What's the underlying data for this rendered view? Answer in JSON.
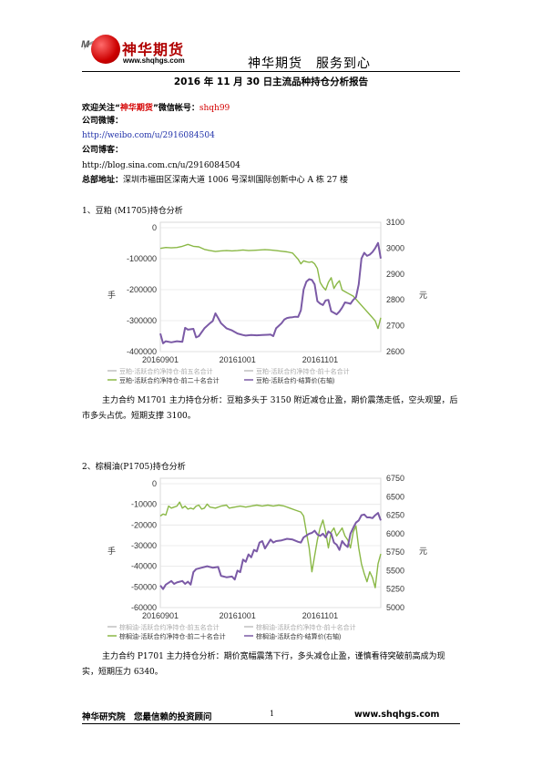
{
  "header": {
    "logo_mark": "M",
    "logo_cn": "神华期货",
    "logo_url": "www.shqhgs.com",
    "slogan": "神华期货　服务到心"
  },
  "title": "2016 年 11 月 30 日主流品种持仓分析报告",
  "contact": {
    "follow_prefix": "欢迎关注“",
    "follow_name": "神华期货",
    "follow_suffix": "”微信帐号：",
    "wechat_id": "shqh99",
    "weibo_label": "公司微博：",
    "weibo_url": "http://weibo.com/u/2916084504",
    "blog_label": "公司博客：",
    "blog_url": "http://blog.sina.com.cn/u/2916084504",
    "address_label": "总部地址：",
    "address": "深圳市福田区深南大道 1006 号深圳国际创新中心 A 栋 27 楼"
  },
  "sections": [
    {
      "heading": "1、豆粕 (M1705)持仓分析",
      "analysis": "主力合约 M1701 主力持仓分析：豆粕多头于 3150 附近减仓止盈，期价震荡走低，空头观望，后市多头占优。短期支撑 3100。"
    },
    {
      "heading": "2、棕榈油(P1705)持仓分析",
      "analysis": "主力合约 P1701 主力持仓分析：期价宽幅震荡下行，多头减仓止盈，谨慎看待突破前高成为现实，短期压力 6340。"
    }
  ],
  "chart_data": [
    {
      "type": "line",
      "left_axis": {
        "label": "手",
        "ticks": [
          "0",
          "-100000",
          "-200000",
          "-300000",
          "-400000"
        ],
        "range": [
          -400000,
          20000
        ]
      },
      "right_axis": {
        "label": "元",
        "ticks": [
          "3100",
          "3000",
          "2900",
          "2800",
          "2700",
          "2600"
        ],
        "range": [
          2600,
          3100
        ]
      },
      "x_ticks": [
        "20160901",
        "20161001",
        "20161101"
      ],
      "legend": [
        "豆粕-活跃合约净持仓-前五名合计",
        "豆粕-活跃合约净持仓-前十名合计",
        "豆粕-活跃合约净持仓-前二十名合计",
        "豆粕-活跃合约-结算价(右轴)"
      ],
      "series": [
        {
          "name": "豆粕-活跃合约净持仓-前二十名合计",
          "axis": "left",
          "color": "#8ab846",
          "points": [
            [
              0,
              -65000
            ],
            [
              2,
              -62000
            ],
            [
              4,
              -63000
            ],
            [
              6,
              -62000
            ],
            [
              8,
              -58000
            ],
            [
              10,
              -52000
            ],
            [
              12,
              -58000
            ],
            [
              14,
              -60000
            ],
            [
              16,
              -68000
            ],
            [
              18,
              -72000
            ],
            [
              20,
              -75000
            ],
            [
              22,
              -73000
            ],
            [
              24,
              -72000
            ],
            [
              26,
              -73000
            ],
            [
              28,
              -72000
            ],
            [
              30,
              -70000
            ],
            [
              32,
              -72000
            ],
            [
              34,
              -71000
            ],
            [
              36,
              -70000
            ],
            [
              38,
              -69000
            ],
            [
              40,
              -70000
            ],
            [
              42,
              -72000
            ],
            [
              44,
              -74000
            ],
            [
              46,
              -76000
            ],
            [
              48,
              -80000
            ],
            [
              50,
              -100000
            ],
            [
              51,
              -115000
            ],
            [
              52,
              -105000
            ],
            [
              53,
              -108000
            ],
            [
              54,
              -110000
            ],
            [
              55,
              -108000
            ],
            [
              56,
              -115000
            ],
            [
              57,
              -130000
            ],
            [
              58,
              -175000
            ],
            [
              59,
              -190000
            ],
            [
              60,
              -200000
            ],
            [
              61,
              -175000
            ],
            [
              62,
              -160000
            ],
            [
              63,
              -195000
            ],
            [
              64,
              -180000
            ],
            [
              65,
              -170000
            ],
            [
              66,
              -200000
            ],
            [
              67,
              -205000
            ],
            [
              68,
              -210000
            ],
            [
              70,
              -220000
            ],
            [
              72,
              -240000
            ],
            [
              74,
              -260000
            ],
            [
              76,
              -280000
            ],
            [
              78,
              -300000
            ],
            [
              79,
              -325000
            ],
            [
              80,
              -290000
            ]
          ]
        },
        {
          "name": "豆粕-活跃合约-结算价(右轴)",
          "axis": "right",
          "color": "#7b5aa6",
          "points": [
            [
              0,
              2670
            ],
            [
              1,
              2632
            ],
            [
              2,
              2640
            ],
            [
              4,
              2636
            ],
            [
              6,
              2640
            ],
            [
              8,
              2638
            ],
            [
              9,
              2692
            ],
            [
              10,
              2685
            ],
            [
              12,
              2688
            ],
            [
              13,
              2655
            ],
            [
              14,
              2660
            ],
            [
              16,
              2690
            ],
            [
              18,
              2710
            ],
            [
              19,
              2718
            ],
            [
              20,
              2748
            ],
            [
              21,
              2730
            ],
            [
              22,
              2710
            ],
            [
              24,
              2690
            ],
            [
              26,
              2682
            ],
            [
              28,
              2670
            ],
            [
              30,
              2664
            ],
            [
              31,
              2662
            ],
            [
              33,
              2664
            ],
            [
              35,
              2663
            ],
            [
              37,
              2664
            ],
            [
              39,
              2665
            ],
            [
              40,
              2666
            ],
            [
              41,
              2660
            ],
            [
              42,
              2690
            ],
            [
              43,
              2700
            ],
            [
              44,
              2710
            ],
            [
              45,
              2724
            ],
            [
              46,
              2730
            ],
            [
              47,
              2732
            ],
            [
              48,
              2733
            ],
            [
              49,
              2735
            ],
            [
              50,
              2734
            ],
            [
              51,
              2760
            ],
            [
              52,
              2840
            ],
            [
              53,
              2870
            ],
            [
              54,
              2880
            ],
            [
              55,
              2877
            ],
            [
              56,
              2860
            ],
            [
              57,
              2795
            ],
            [
              58,
              2786
            ],
            [
              59,
              2780
            ],
            [
              60,
              2798
            ],
            [
              61,
              2800
            ],
            [
              62,
              2756
            ],
            [
              63,
              2750
            ],
            [
              64,
              2744
            ],
            [
              65,
              2755
            ],
            [
              66,
              2770
            ],
            [
              67,
              2790
            ],
            [
              68,
              2788
            ],
            [
              69,
              2785
            ],
            [
              70,
              2800
            ],
            [
              71,
              2810
            ],
            [
              72,
              2860
            ],
            [
              73,
              2960
            ],
            [
              74,
              2982
            ],
            [
              75,
              2970
            ],
            [
              76,
              2975
            ],
            [
              77,
              2985
            ],
            [
              78,
              3000
            ],
            [
              79,
              3020
            ],
            [
              80,
              2960
            ]
          ]
        }
      ]
    },
    {
      "type": "line",
      "left_axis": {
        "label": "手",
        "ticks": [
          "0",
          "-10000",
          "-20000",
          "-30000",
          "-40000",
          "-50000",
          "-60000"
        ],
        "range": [
          -60000,
          5000
        ]
      },
      "right_axis": {
        "label": "元",
        "ticks": [
          "6750",
          "6500",
          "6250",
          "6000",
          "5750",
          "5500",
          "5250",
          "5000"
        ],
        "range": [
          5000,
          6750
        ]
      },
      "x_ticks": [
        "20160901",
        "20161001",
        "20161101"
      ],
      "legend": [
        "棕榈油-活跃合约净持仓-前五名合计",
        "棕榈油-活跃合约净持仓-前十名合计",
        "棕榈油-活跃合约净持仓-前二十名合计",
        "棕榈油-活跃合约-结算价(右轴)"
      ],
      "series": [
        {
          "name": "棕榈油-活跃合约净持仓-前二十名合计",
          "axis": "left",
          "color": "#8ab846",
          "points": [
            [
              0,
              -14000
            ],
            [
              1,
              -13000
            ],
            [
              2,
              -13500
            ],
            [
              3,
              -9000
            ],
            [
              4,
              -10000
            ],
            [
              5,
              -9500
            ],
            [
              6,
              -9000
            ],
            [
              7,
              -7000
            ],
            [
              8,
              -10000
            ],
            [
              9,
              -9000
            ],
            [
              10,
              -10500
            ],
            [
              11,
              -10000
            ],
            [
              12,
              -10500
            ],
            [
              13,
              -9000
            ],
            [
              14,
              -8500
            ],
            [
              15,
              -10500
            ],
            [
              16,
              -10000
            ],
            [
              17,
              -8000
            ],
            [
              18,
              -9500
            ],
            [
              20,
              -10000
            ],
            [
              22,
              -9000
            ],
            [
              24,
              -8500
            ],
            [
              25,
              -10000
            ],
            [
              27,
              -9500
            ],
            [
              29,
              -9000
            ],
            [
              31,
              -9500
            ],
            [
              33,
              -9000
            ],
            [
              35,
              -8500
            ],
            [
              37,
              -9000
            ],
            [
              39,
              -8500
            ],
            [
              41,
              -9000
            ],
            [
              43,
              -8500
            ],
            [
              45,
              -9000
            ],
            [
              47,
              -10000
            ],
            [
              49,
              -11000
            ],
            [
              51,
              -12000
            ],
            [
              52,
              -14000
            ],
            [
              53,
              -22000
            ],
            [
              54,
              -30000
            ],
            [
              55,
              -42000
            ],
            [
              56,
              -34000
            ],
            [
              57,
              -26000
            ],
            [
              58,
              -20000
            ],
            [
              59,
              -16000
            ],
            [
              60,
              -22000
            ],
            [
              61,
              -30000
            ],
            [
              62,
              -22000
            ],
            [
              63,
              -20000
            ],
            [
              64,
              -24000
            ],
            [
              65,
              -22000
            ],
            [
              66,
              -20000
            ],
            [
              67,
              -24000
            ],
            [
              68,
              -26000
            ],
            [
              69,
              -30000
            ],
            [
              70,
              -22000
            ],
            [
              71,
              -19000
            ],
            [
              72,
              -30000
            ],
            [
              73,
              -38000
            ],
            [
              74,
              -43000
            ],
            [
              75,
              -47000
            ],
            [
              76,
              -42000
            ],
            [
              77,
              -45000
            ],
            [
              78,
              -50000
            ],
            [
              79,
              -38000
            ],
            [
              80,
              -33000
            ]
          ]
        },
        {
          "name": "棕榈油-活跃合约-结算价(右轴)",
          "axis": "right",
          "color": "#7b5aa6",
          "points": [
            [
              0,
              5300
            ],
            [
              1,
              5250
            ],
            [
              2,
              5310
            ],
            [
              4,
              5360
            ],
            [
              5,
              5320
            ],
            [
              6,
              5340
            ],
            [
              8,
              5360
            ],
            [
              9,
              5320
            ],
            [
              10,
              5350
            ],
            [
              11,
              5310
            ],
            [
              12,
              5480
            ],
            [
              13,
              5520
            ],
            [
              15,
              5540
            ],
            [
              17,
              5560
            ],
            [
              19,
              5540
            ],
            [
              21,
              5550
            ],
            [
              22,
              5430
            ],
            [
              24,
              5410
            ],
            [
              26,
              5420
            ],
            [
              27,
              5380
            ],
            [
              28,
              5500
            ],
            [
              29,
              5480
            ],
            [
              30,
              5650
            ],
            [
              31,
              5620
            ],
            [
              32,
              5720
            ],
            [
              33,
              5680
            ],
            [
              34,
              5780
            ],
            [
              35,
              5760
            ],
            [
              36,
              5880
            ],
            [
              37,
              5900
            ],
            [
              38,
              5800
            ],
            [
              39,
              5860
            ],
            [
              40,
              5920
            ],
            [
              41,
              5880
            ],
            [
              42,
              5900
            ],
            [
              44,
              5910
            ],
            [
              46,
              5930
            ],
            [
              48,
              5920
            ],
            [
              50,
              5890
            ],
            [
              51,
              5880
            ],
            [
              52,
              5950
            ],
            [
              54,
              6000
            ],
            [
              55,
              6010
            ],
            [
              56,
              6040
            ],
            [
              57,
              5990
            ],
            [
              58,
              5970
            ],
            [
              59,
              6000
            ],
            [
              60,
              5950
            ],
            [
              61,
              6030
            ],
            [
              62,
              6000
            ],
            [
              63,
              5880
            ],
            [
              64,
              5850
            ],
            [
              65,
              5780
            ],
            [
              66,
              5900
            ],
            [
              67,
              5850
            ],
            [
              68,
              5820
            ],
            [
              69,
              6000
            ],
            [
              70,
              6080
            ],
            [
              71,
              6150
            ],
            [
              72,
              6180
            ],
            [
              73,
              6250
            ],
            [
              74,
              6260
            ],
            [
              75,
              6220
            ],
            [
              76,
              6220
            ],
            [
              77,
              6210
            ],
            [
              78,
              6250
            ],
            [
              79,
              6280
            ],
            [
              80,
              6180
            ]
          ]
        }
      ]
    }
  ],
  "footer": {
    "left": "神华研究院　您最信赖的投资顾问",
    "page": "1",
    "right": "www.shqhgs.com"
  }
}
